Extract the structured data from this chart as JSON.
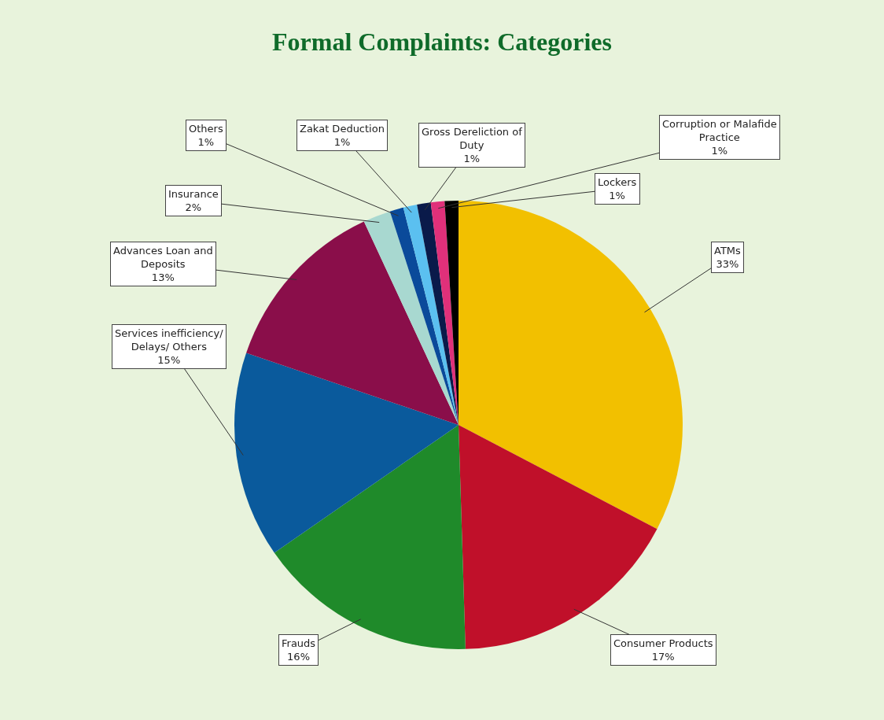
{
  "chart_data": {
    "type": "pie",
    "title": "Formal Complaints: Categories",
    "categories": [
      "ATMs",
      "Consumer Products",
      "Frauds",
      "Services inefficiency/ Delays/ Others",
      "Advances Loan and Deposits",
      "Insurance",
      "Others",
      "Zakat Deduction",
      "Gross Dereliction of Duty",
      "Corruption or Malafide Practice",
      "Lockers"
    ],
    "values": [
      33,
      17,
      16,
      15,
      13,
      2,
      1,
      1,
      1,
      1,
      1
    ],
    "value_labels": [
      "33%",
      "17%",
      "16%",
      "15%",
      "13%",
      "2%",
      "1%",
      "1%",
      "1%",
      "1%",
      "1%"
    ],
    "colors": [
      "#f2c000",
      "#c0102a",
      "#1f8a2a",
      "#0a5a9c",
      "#8a0e4a",
      "#a8d8d0",
      "#0a4a9a",
      "#5bc0f0",
      "#0a1a4a",
      "#e0307a",
      "#000000"
    ],
    "legend": false
  }
}
